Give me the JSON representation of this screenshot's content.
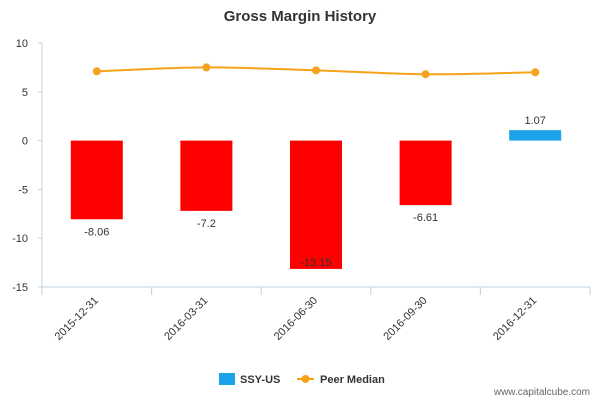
{
  "chart_data": {
    "type": "bar",
    "title": "Gross Margin History",
    "categories": [
      "2015-12-31",
      "2016-03-31",
      "2016-06-30",
      "2016-09-30",
      "2016-12-31"
    ],
    "series": [
      {
        "name": "SSY-US",
        "kind": "bar",
        "values": [
          -8.06,
          -7.2,
          -13.15,
          -6.61,
          1.07
        ],
        "labels": [
          "-8.06",
          "-7.2",
          "-13.15",
          "-6.61",
          "1.07"
        ],
        "negative_color": "#ff0000",
        "positive_color": "#1aa3e8"
      },
      {
        "name": "Peer Median",
        "kind": "line",
        "values": [
          7.1,
          7.5,
          7.2,
          6.8,
          7.0
        ],
        "color": "#f7a21b"
      }
    ],
    "ylim": [
      -15,
      10
    ],
    "yticks": [
      10,
      5,
      0,
      -5,
      -10,
      -15
    ],
    "grid": false,
    "legend": "bottom-center"
  },
  "watermark": "www.capitalcube.com",
  "colors": {
    "axis": "#c0d0e0",
    "text": "#333333"
  }
}
